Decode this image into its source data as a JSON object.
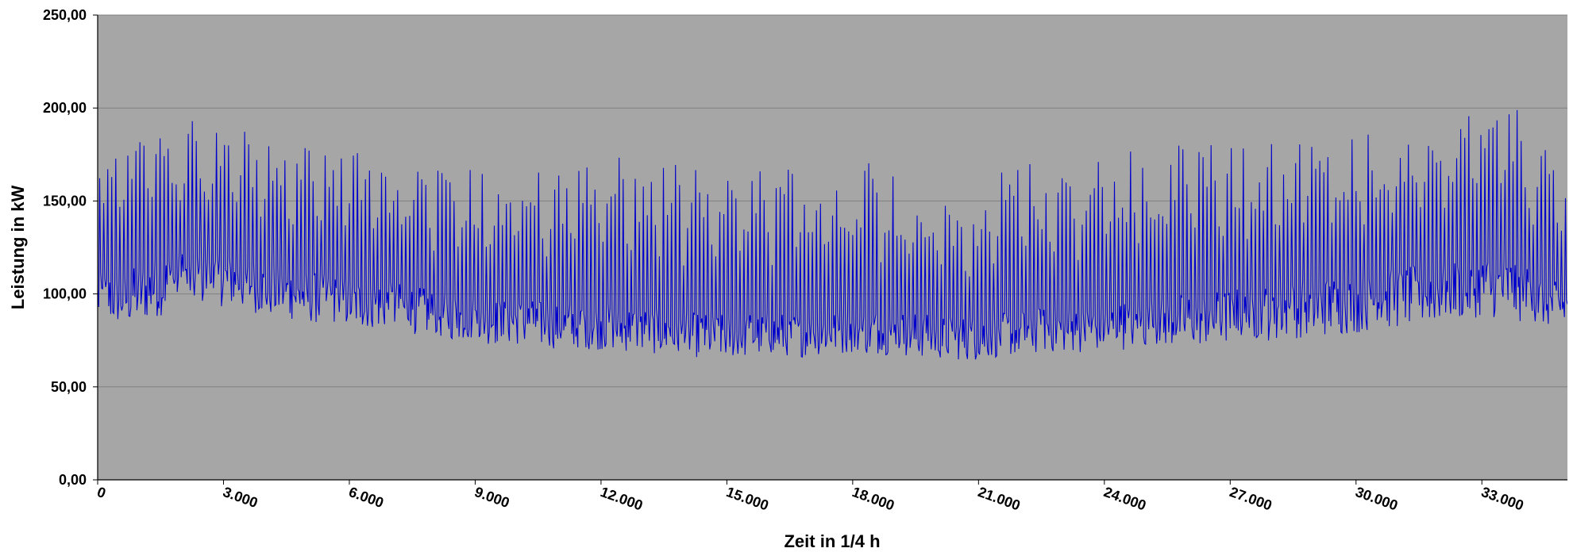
{
  "chart_data": {
    "type": "line",
    "title": "",
    "xlabel": "Zeit in 1/4 h",
    "ylabel": "Leistung in kW",
    "xlim": [
      0,
      35040
    ],
    "ylim": [
      0,
      250
    ],
    "x_ticks": [
      0,
      3000,
      6000,
      9000,
      12000,
      15000,
      18000,
      21000,
      24000,
      27000,
      30000,
      33000
    ],
    "x_tick_labels": [
      "0",
      "3.000",
      "6.000",
      "9.000",
      "12.000",
      "15.000",
      "18.000",
      "21.000",
      "24.000",
      "27.000",
      "30.000",
      "33.000"
    ],
    "y_ticks": [
      0,
      50,
      100,
      150,
      200,
      250
    ],
    "y_tick_labels": [
      "0,00",
      "50,00",
      "100,00",
      "150,00",
      "200,00",
      "250,00"
    ],
    "grid": true,
    "colors": {
      "plot_background": "#a6a6a6",
      "line": "#0000cc",
      "grid": "#808080"
    },
    "series": [
      {
        "name": "",
        "sampling_note": "",
        "x": [
          0,
          672,
          1344,
          2016,
          2688,
          3360,
          4032,
          4704,
          5376,
          6048,
          6720,
          7392,
          8064,
          8736,
          9408,
          10080,
          10752,
          11424,
          12096,
          12768,
          13440,
          14112,
          14784,
          15456,
          16128,
          16800,
          17472,
          18144,
          18816,
          19488,
          20160,
          20832,
          21504,
          22176,
          22848,
          23520,
          24192,
          24864,
          25536,
          26208,
          26880,
          27552,
          28224,
          28896,
          29568,
          30240,
          30912,
          31584,
          32256,
          32928,
          33600,
          34272,
          34944
        ],
        "max": [
          173,
          179,
          197,
          192,
          195,
          190,
          182,
          180,
          182,
          183,
          178,
          176,
          166,
          173,
          170,
          176,
          164,
          167,
          176,
          178,
          172,
          172,
          161,
          170,
          168,
          168,
          170,
          180,
          172,
          158,
          150,
          148,
          165,
          171,
          174,
          171,
          177,
          182,
          183,
          181,
          182,
          182,
          183,
          186,
          186,
          188,
          190,
          191,
          195,
          196,
          207,
          185,
          165
        ],
        "min": [
          74,
          70,
          73,
          80,
          82,
          80,
          76,
          74,
          72,
          70,
          70,
          68,
          66,
          64,
          62,
          62,
          60,
          60,
          59,
          58,
          57,
          56,
          55,
          56,
          57,
          56,
          58,
          57,
          57,
          56,
          55,
          54,
          56,
          57,
          58,
          58,
          59,
          59,
          60,
          60,
          60,
          62,
          62,
          64,
          64,
          66,
          68,
          70,
          72,
          74,
          72,
          70,
          72
        ],
        "mean": [
          118,
          120,
          128,
          132,
          130,
          128,
          124,
          120,
          118,
          116,
          114,
          112,
          108,
          106,
          104,
          104,
          102,
          102,
          102,
          100,
          98,
          96,
          95,
          96,
          96,
          96,
          97,
          98,
          98,
          96,
          94,
          94,
          96,
          98,
          100,
          100,
          102,
          104,
          106,
          108,
          110,
          112,
          114,
          116,
          118,
          120,
          122,
          124,
          126,
          128,
          130,
          120,
          110
        ]
      }
    ]
  }
}
